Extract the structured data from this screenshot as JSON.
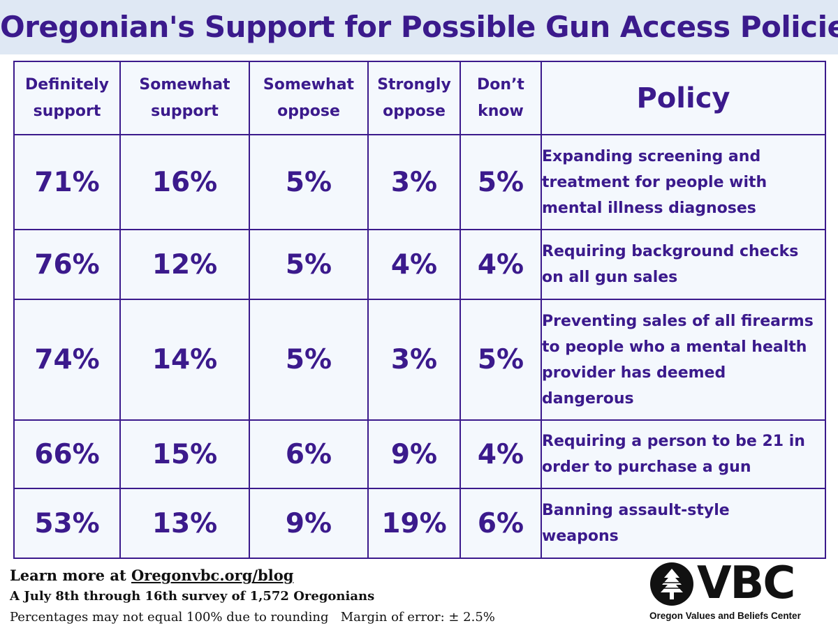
{
  "title": "Oregonian's Support for Possible Gun Access Policies",
  "chart_data": {
    "type": "table",
    "columns": [
      {
        "line1": "Definitely",
        "line2": "support"
      },
      {
        "line1": "Somewhat",
        "line2": "support"
      },
      {
        "line1": "Somewhat",
        "line2": "oppose"
      },
      {
        "line1": "Strongly",
        "line2": "oppose"
      },
      {
        "line1": "Don’t",
        "line2": "know"
      }
    ],
    "policy_header": "Policy",
    "rows": [
      {
        "values": [
          "71%",
          "16%",
          "5%",
          "3%",
          "5%"
        ],
        "policy_lines": [
          "Expanding screening and",
          "treatment for people with",
          "mental illness diagnoses"
        ]
      },
      {
        "values": [
          "76%",
          "12%",
          "5%",
          "4%",
          "4%"
        ],
        "policy_lines": [
          "Requiring background checks",
          "on all gun sales"
        ]
      },
      {
        "values": [
          "74%",
          "14%",
          "5%",
          "3%",
          "5%"
        ],
        "policy_lines": [
          "Preventing sales of all firearms",
          "to people who a mental health",
          "provider has deemed",
          "dangerous"
        ]
      },
      {
        "values": [
          "66%",
          "15%",
          "6%",
          "9%",
          "4%"
        ],
        "policy_lines": [
          "Requiring a person to be 21 in",
          "order to purchase a gun"
        ]
      },
      {
        "values": [
          "53%",
          "13%",
          "9%",
          "19%",
          "6%"
        ],
        "policy_lines": [
          "Banning assault-style",
          "weapons"
        ]
      }
    ]
  },
  "footer": {
    "learn_prefix": "Learn more at ",
    "learn_link": "Oregonvbc.org/blog",
    "survey_note": "A July 8th through 16th survey of 1,572 Oregonians",
    "rounding_note": "Percentages may not equal  100% due to rounding",
    "margin_note": "Margin of error: ± 2.5%"
  },
  "logo": {
    "letters": "VBC",
    "subtitle": "Oregon Values and Beliefs Center",
    "icon": "tree-in-circle-icon"
  },
  "colors": {
    "primary": "#3b1a8c",
    "title_band": "#dfe8f4",
    "table_background": "#f4f8fd",
    "footer_text": "#111111"
  }
}
